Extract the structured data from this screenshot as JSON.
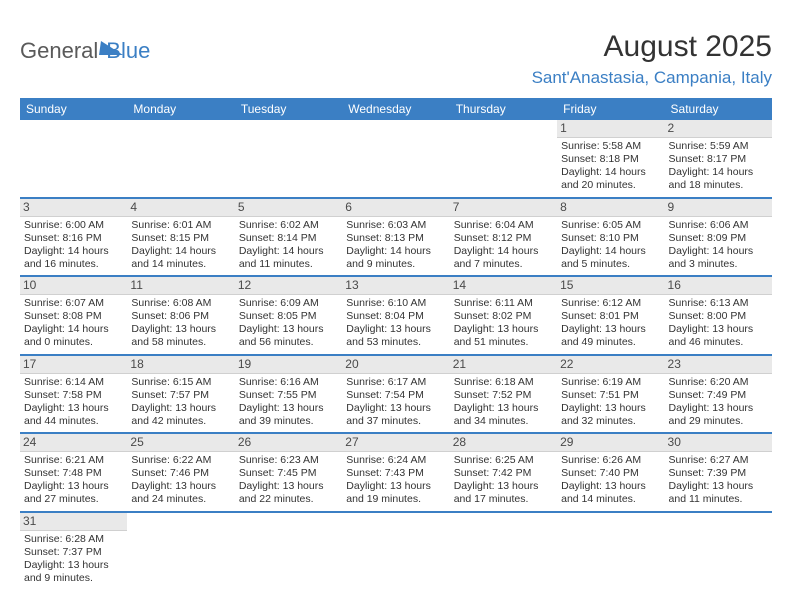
{
  "logo": {
    "part1": "General",
    "part2": "Blue"
  },
  "title": "August 2025",
  "location": "Sant'Anastasia, Campania, Italy",
  "colors": {
    "accent": "#3b7fc4",
    "logo_gray": "#5a5a5a",
    "text": "#333333",
    "daynum_bg": "#e9e9e9",
    "border": "#d0d0d0"
  },
  "day_headers": [
    "Sunday",
    "Monday",
    "Tuesday",
    "Wednesday",
    "Thursday",
    "Friday",
    "Saturday"
  ],
  "weeks": [
    [
      {
        "empty": true
      },
      {
        "empty": true
      },
      {
        "empty": true
      },
      {
        "empty": true
      },
      {
        "empty": true
      },
      {
        "day": "1",
        "sunrise": "Sunrise: 5:58 AM",
        "sunset": "Sunset: 8:18 PM",
        "daylight1": "Daylight: 14 hours",
        "daylight2": "and 20 minutes."
      },
      {
        "day": "2",
        "sunrise": "Sunrise: 5:59 AM",
        "sunset": "Sunset: 8:17 PM",
        "daylight1": "Daylight: 14 hours",
        "daylight2": "and 18 minutes."
      }
    ],
    [
      {
        "day": "3",
        "sunrise": "Sunrise: 6:00 AM",
        "sunset": "Sunset: 8:16 PM",
        "daylight1": "Daylight: 14 hours",
        "daylight2": "and 16 minutes."
      },
      {
        "day": "4",
        "sunrise": "Sunrise: 6:01 AM",
        "sunset": "Sunset: 8:15 PM",
        "daylight1": "Daylight: 14 hours",
        "daylight2": "and 14 minutes."
      },
      {
        "day": "5",
        "sunrise": "Sunrise: 6:02 AM",
        "sunset": "Sunset: 8:14 PM",
        "daylight1": "Daylight: 14 hours",
        "daylight2": "and 11 minutes."
      },
      {
        "day": "6",
        "sunrise": "Sunrise: 6:03 AM",
        "sunset": "Sunset: 8:13 PM",
        "daylight1": "Daylight: 14 hours",
        "daylight2": "and 9 minutes."
      },
      {
        "day": "7",
        "sunrise": "Sunrise: 6:04 AM",
        "sunset": "Sunset: 8:12 PM",
        "daylight1": "Daylight: 14 hours",
        "daylight2": "and 7 minutes."
      },
      {
        "day": "8",
        "sunrise": "Sunrise: 6:05 AM",
        "sunset": "Sunset: 8:10 PM",
        "daylight1": "Daylight: 14 hours",
        "daylight2": "and 5 minutes."
      },
      {
        "day": "9",
        "sunrise": "Sunrise: 6:06 AM",
        "sunset": "Sunset: 8:09 PM",
        "daylight1": "Daylight: 14 hours",
        "daylight2": "and 3 minutes."
      }
    ],
    [
      {
        "day": "10",
        "sunrise": "Sunrise: 6:07 AM",
        "sunset": "Sunset: 8:08 PM",
        "daylight1": "Daylight: 14 hours",
        "daylight2": "and 0 minutes."
      },
      {
        "day": "11",
        "sunrise": "Sunrise: 6:08 AM",
        "sunset": "Sunset: 8:06 PM",
        "daylight1": "Daylight: 13 hours",
        "daylight2": "and 58 minutes."
      },
      {
        "day": "12",
        "sunrise": "Sunrise: 6:09 AM",
        "sunset": "Sunset: 8:05 PM",
        "daylight1": "Daylight: 13 hours",
        "daylight2": "and 56 minutes."
      },
      {
        "day": "13",
        "sunrise": "Sunrise: 6:10 AM",
        "sunset": "Sunset: 8:04 PM",
        "daylight1": "Daylight: 13 hours",
        "daylight2": "and 53 minutes."
      },
      {
        "day": "14",
        "sunrise": "Sunrise: 6:11 AM",
        "sunset": "Sunset: 8:02 PM",
        "daylight1": "Daylight: 13 hours",
        "daylight2": "and 51 minutes."
      },
      {
        "day": "15",
        "sunrise": "Sunrise: 6:12 AM",
        "sunset": "Sunset: 8:01 PM",
        "daylight1": "Daylight: 13 hours",
        "daylight2": "and 49 minutes."
      },
      {
        "day": "16",
        "sunrise": "Sunrise: 6:13 AM",
        "sunset": "Sunset: 8:00 PM",
        "daylight1": "Daylight: 13 hours",
        "daylight2": "and 46 minutes."
      }
    ],
    [
      {
        "day": "17",
        "sunrise": "Sunrise: 6:14 AM",
        "sunset": "Sunset: 7:58 PM",
        "daylight1": "Daylight: 13 hours",
        "daylight2": "and 44 minutes."
      },
      {
        "day": "18",
        "sunrise": "Sunrise: 6:15 AM",
        "sunset": "Sunset: 7:57 PM",
        "daylight1": "Daylight: 13 hours",
        "daylight2": "and 42 minutes."
      },
      {
        "day": "19",
        "sunrise": "Sunrise: 6:16 AM",
        "sunset": "Sunset: 7:55 PM",
        "daylight1": "Daylight: 13 hours",
        "daylight2": "and 39 minutes."
      },
      {
        "day": "20",
        "sunrise": "Sunrise: 6:17 AM",
        "sunset": "Sunset: 7:54 PM",
        "daylight1": "Daylight: 13 hours",
        "daylight2": "and 37 minutes."
      },
      {
        "day": "21",
        "sunrise": "Sunrise: 6:18 AM",
        "sunset": "Sunset: 7:52 PM",
        "daylight1": "Daylight: 13 hours",
        "daylight2": "and 34 minutes."
      },
      {
        "day": "22",
        "sunrise": "Sunrise: 6:19 AM",
        "sunset": "Sunset: 7:51 PM",
        "daylight1": "Daylight: 13 hours",
        "daylight2": "and 32 minutes."
      },
      {
        "day": "23",
        "sunrise": "Sunrise: 6:20 AM",
        "sunset": "Sunset: 7:49 PM",
        "daylight1": "Daylight: 13 hours",
        "daylight2": "and 29 minutes."
      }
    ],
    [
      {
        "day": "24",
        "sunrise": "Sunrise: 6:21 AM",
        "sunset": "Sunset: 7:48 PM",
        "daylight1": "Daylight: 13 hours",
        "daylight2": "and 27 minutes."
      },
      {
        "day": "25",
        "sunrise": "Sunrise: 6:22 AM",
        "sunset": "Sunset: 7:46 PM",
        "daylight1": "Daylight: 13 hours",
        "daylight2": "and 24 minutes."
      },
      {
        "day": "26",
        "sunrise": "Sunrise: 6:23 AM",
        "sunset": "Sunset: 7:45 PM",
        "daylight1": "Daylight: 13 hours",
        "daylight2": "and 22 minutes."
      },
      {
        "day": "27",
        "sunrise": "Sunrise: 6:24 AM",
        "sunset": "Sunset: 7:43 PM",
        "daylight1": "Daylight: 13 hours",
        "daylight2": "and 19 minutes."
      },
      {
        "day": "28",
        "sunrise": "Sunrise: 6:25 AM",
        "sunset": "Sunset: 7:42 PM",
        "daylight1": "Daylight: 13 hours",
        "daylight2": "and 17 minutes."
      },
      {
        "day": "29",
        "sunrise": "Sunrise: 6:26 AM",
        "sunset": "Sunset: 7:40 PM",
        "daylight1": "Daylight: 13 hours",
        "daylight2": "and 14 minutes."
      },
      {
        "day": "30",
        "sunrise": "Sunrise: 6:27 AM",
        "sunset": "Sunset: 7:39 PM",
        "daylight1": "Daylight: 13 hours",
        "daylight2": "and 11 minutes."
      }
    ],
    [
      {
        "day": "31",
        "sunrise": "Sunrise: 6:28 AM",
        "sunset": "Sunset: 7:37 PM",
        "daylight1": "Daylight: 13 hours",
        "daylight2": "and 9 minutes."
      },
      {
        "empty": true
      },
      {
        "empty": true
      },
      {
        "empty": true
      },
      {
        "empty": true
      },
      {
        "empty": true
      },
      {
        "empty": true
      }
    ]
  ]
}
